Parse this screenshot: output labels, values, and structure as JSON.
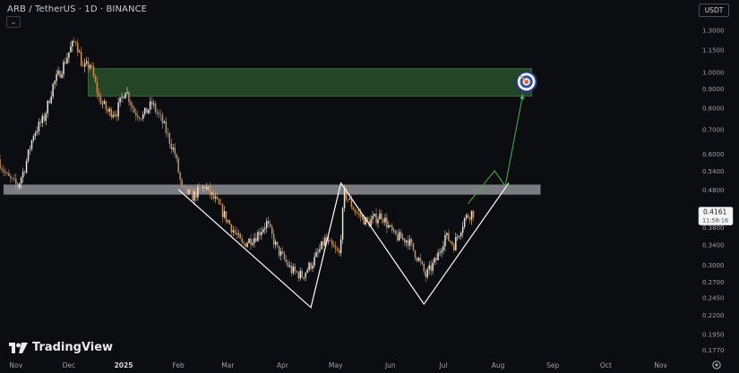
{
  "header": {
    "title": "ARB / TetherUS · 1D · BINANCE",
    "currency_button": "USDT",
    "collapse_icon": "chevron-down-icon"
  },
  "logo": {
    "text": "TradingView",
    "icon": "tradingview-logo-icon"
  },
  "price_tag": {
    "price": "0.4161",
    "countdown": "11:58:16"
  },
  "colors": {
    "background": "#0c0d10",
    "candle_up": "#e8e6e1",
    "candle_down": "#c9925c",
    "target_zone": "#2c5a2e",
    "resistance_band": "#9a9ca3",
    "projection_arrow": "#4caf50",
    "pattern_lines": "#ffffff"
  },
  "chart_data": {
    "type": "candlestick",
    "title": "ARB / TetherUS · 1D · BINANCE",
    "y_scale": "log",
    "ylim": [
      0.17,
      1.4
    ],
    "y_ticks": [
      "1.3000",
      "1.1500",
      "1.0000",
      "0.9000",
      "0.8000",
      "0.7000",
      "0.6000",
      "0.5400",
      "0.4800",
      "0.3800",
      "0.3400",
      "0.3000",
      "0.2700",
      "0.2450",
      "0.2200",
      "0.1950",
      "0.1770"
    ],
    "x_ticks": [
      "Nov",
      "Dec",
      "2025",
      "Feb",
      "Mar",
      "Apr",
      "May",
      "Jun",
      "Jul",
      "Aug",
      "Sep",
      "Oct",
      "Nov"
    ],
    "x_range": [
      "2024-10-23",
      "2025-11-20"
    ],
    "last_price": 0.4161,
    "price_path": [
      [
        "2024-10-23",
        0.58
      ],
      [
        "2024-10-28",
        0.52
      ],
      [
        "2024-11-03",
        0.49
      ],
      [
        "2024-11-07",
        0.55
      ],
      [
        "2024-11-12",
        0.68
      ],
      [
        "2024-11-18",
        0.75
      ],
      [
        "2024-11-23",
        0.92
      ],
      [
        "2024-11-28",
        1.02
      ],
      [
        "2024-12-03",
        1.16
      ],
      [
        "2024-12-06",
        1.22
      ],
      [
        "2024-12-10",
        1.02
      ],
      [
        "2024-12-14",
        1.05
      ],
      [
        "2024-12-19",
        0.85
      ],
      [
        "2024-12-24",
        0.78
      ],
      [
        "2024-12-29",
        0.78
      ],
      [
        "2025-01-03",
        0.9
      ],
      [
        "2025-01-08",
        0.78
      ],
      [
        "2025-01-13",
        0.76
      ],
      [
        "2025-01-18",
        0.82
      ],
      [
        "2025-01-24",
        0.73
      ],
      [
        "2025-01-31",
        0.6
      ],
      [
        "2025-02-04",
        0.48
      ],
      [
        "2025-02-10",
        0.46
      ],
      [
        "2025-02-17",
        0.49
      ],
      [
        "2025-02-24",
        0.44
      ],
      [
        "2025-03-04",
        0.38
      ],
      [
        "2025-03-10",
        0.34
      ],
      [
        "2025-03-18",
        0.36
      ],
      [
        "2025-03-24",
        0.39
      ],
      [
        "2025-03-30",
        0.33
      ],
      [
        "2025-04-07",
        0.29
      ],
      [
        "2025-04-13",
        0.28
      ],
      [
        "2025-04-20",
        0.31
      ],
      [
        "2025-04-26",
        0.35
      ],
      [
        "2025-05-04",
        0.32
      ],
      [
        "2025-05-07",
        0.47
      ],
      [
        "2025-05-13",
        0.42
      ],
      [
        "2025-05-20",
        0.39
      ],
      [
        "2025-05-28",
        0.41
      ],
      [
        "2025-06-04",
        0.36
      ],
      [
        "2025-06-12",
        0.35
      ],
      [
        "2025-06-18",
        0.31
      ],
      [
        "2025-06-22",
        0.28
      ],
      [
        "2025-06-28",
        0.31
      ],
      [
        "2025-07-03",
        0.36
      ],
      [
        "2025-07-08",
        0.34
      ],
      [
        "2025-07-14",
        0.4
      ],
      [
        "2025-07-18",
        0.4161
      ]
    ],
    "annotations": {
      "target_zone": {
        "from": "2024-12-12",
        "to": "2025-08-20",
        "low": 0.86,
        "high": 1.02
      },
      "resistance_band": {
        "from": "2024-10-25",
        "to": "2025-08-25",
        "low": 0.465,
        "high": 0.495
      },
      "pattern_lines": [
        [
          [
            "2025-02-01",
            0.48
          ],
          [
            "2025-04-17",
            0.23
          ],
          [
            "2025-05-04",
            0.5
          ],
          [
            "2025-06-20",
            0.235
          ],
          [
            "2025-08-07",
            0.5
          ]
        ]
      ],
      "projection_path": [
        [
          "2025-07-15",
          0.44
        ],
        [
          "2025-07-30",
          0.54
        ],
        [
          "2025-08-05",
          0.49
        ],
        [
          "2025-08-15",
          0.87
        ]
      ],
      "target_icon": {
        "date": "2025-08-17",
        "price": 0.94,
        "icon": "bullseye-target-icon"
      }
    }
  }
}
